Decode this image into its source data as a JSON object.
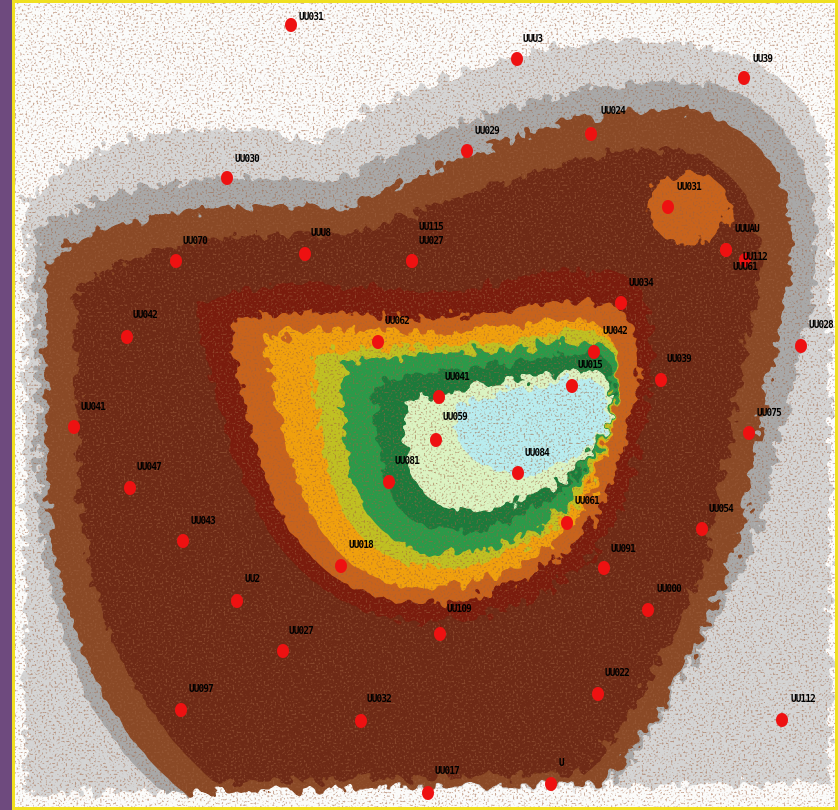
{
  "map": {
    "colors": {
      "frame_border": "#f0e020",
      "marker": "#ee1111",
      "background": "#fbfbfa",
      "levels": [
        "#cfcfcf",
        "#9c9c9c",
        "#8a4a26",
        "#6a2a10",
        "#7a1c0c",
        "#c8641a",
        "#f0a010",
        "#c8d020",
        "#2a9a4a",
        "#1f7a3a",
        "#d8f4c0",
        "#b8eef0"
      ]
    },
    "sources": [
      {
        "label": "UU031"
      },
      {
        "label": "UUU3"
      },
      {
        "label": "UU39"
      },
      {
        "label": "UU024"
      },
      {
        "label": "UU029"
      },
      {
        "label": "UU030"
      },
      {
        "label": "UU031"
      },
      {
        "label": "UUUAU"
      },
      {
        "label": "UU070"
      },
      {
        "label": "UUU8"
      },
      {
        "label": "UU115"
      },
      {
        "label": "UU034"
      },
      {
        "label": "UU112"
      },
      {
        "label": "UU042"
      },
      {
        "label": "UU062"
      },
      {
        "label": "UU028"
      },
      {
        "label": "UU042"
      },
      {
        "label": "UU039"
      },
      {
        "label": "UU015"
      },
      {
        "label": "UU041"
      },
      {
        "label": "UU041"
      },
      {
        "label": "UU075"
      },
      {
        "label": "UU059"
      },
      {
        "label": "UU047"
      },
      {
        "label": "UU081"
      },
      {
        "label": "UU084"
      },
      {
        "label": "UU061"
      },
      {
        "label": "UU054"
      },
      {
        "label": "UU043"
      },
      {
        "label": "UU018"
      },
      {
        "label": "UU091"
      },
      {
        "label": "UU2"
      },
      {
        "label": "UU000"
      },
      {
        "label": "UU109"
      },
      {
        "label": "UU027"
      },
      {
        "label": "UU022"
      },
      {
        "label": "UU097"
      },
      {
        "label": "UU032"
      },
      {
        "label": "UU112"
      },
      {
        "label": "UU017"
      },
      {
        "label": "U"
      },
      {
        "label": "UU027"
      },
      {
        "label": "UUU61"
      }
    ]
  }
}
